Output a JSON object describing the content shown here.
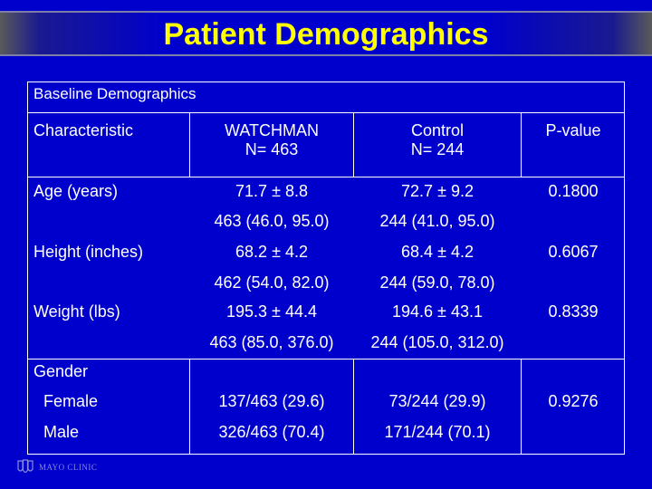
{
  "slide": {
    "title": "Patient Demographics"
  },
  "table": {
    "caption": "Baseline Demographics",
    "headers": {
      "characteristic": "Characteristic",
      "watchman": "WATCHMAN",
      "watchman_n": "N= 463",
      "control": "Control",
      "control_n": "N= 244",
      "pvalue": "P-value"
    },
    "rows": {
      "age": {
        "label": "Age (years)",
        "watchman_mean": "71.7 ± 8.8",
        "control_mean": "72.7 ± 9.2",
        "pvalue": "0.1800",
        "watchman_range": "463 (46.0, 95.0)",
        "control_range": "244 (41.0, 95.0)"
      },
      "height": {
        "label": "Height (inches)",
        "watchman_mean": "68.2 ± 4.2",
        "control_mean": "68.4 ± 4.2",
        "pvalue": "0.6067",
        "watchman_range": "462 (54.0, 82.0)",
        "control_range": "244 (59.0, 78.0)"
      },
      "weight": {
        "label": "Weight (lbs)",
        "watchman_mean": "195.3 ± 44.4",
        "control_mean": "194.6 ± 43.1",
        "pvalue": "0.8339",
        "watchman_range": "463 (85.0, 376.0)",
        "control_range": "244 (105.0, 312.0)"
      },
      "gender": {
        "label": "Gender",
        "pvalue": "0.9276",
        "female": {
          "label": "Female",
          "watchman": "137/463 (29.6)",
          "control": "73/244 (29.9)"
        },
        "male": {
          "label": "Male",
          "watchman": "326/463 (70.4)",
          "control": "171/244 (70.1)"
        }
      }
    }
  },
  "footer": {
    "logo_text": "MAYO CLINIC",
    "logo_icon": "mayo-shields-icon"
  }
}
